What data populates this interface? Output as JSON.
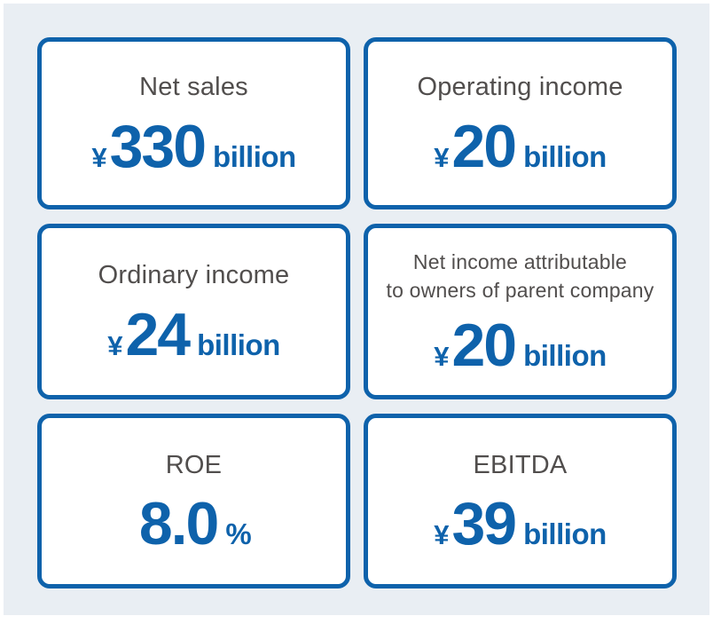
{
  "colors": {
    "panel_background": "#e9eef3",
    "card_background": "#ffffff",
    "card_border_blue": "#0e62ab",
    "value_blue": "#0e62ab",
    "label_gray": "#514e4d"
  },
  "cards": [
    {
      "id": "net-sales",
      "label": "Net sales",
      "currency": "¥",
      "value": "330",
      "suffix": "billion"
    },
    {
      "id": "operating-income",
      "label": "Operating income",
      "currency": "¥",
      "value": "20",
      "suffix": "billion"
    },
    {
      "id": "ordinary-income",
      "label": "Ordinary income",
      "currency": "¥",
      "value": "24",
      "suffix": "billion"
    },
    {
      "id": "net-income",
      "label": "Net income attributable\nto owners of parent company",
      "currency": "¥",
      "value": "20",
      "suffix": "billion"
    },
    {
      "id": "roe",
      "label": "ROE",
      "currency": "",
      "value": "8.0",
      "suffix": "%"
    },
    {
      "id": "ebitda",
      "label": "EBITDA",
      "currency": "¥",
      "value": "39",
      "suffix": "billion"
    }
  ],
  "chart_data": {
    "type": "table",
    "title": "",
    "metrics": [
      {
        "label": "Net sales",
        "value": 330,
        "unit": "¥ billion"
      },
      {
        "label": "Operating income",
        "value": 20,
        "unit": "¥ billion"
      },
      {
        "label": "Ordinary income",
        "value": 24,
        "unit": "¥ billion"
      },
      {
        "label": "Net income attributable to owners of parent company",
        "value": 20,
        "unit": "¥ billion"
      },
      {
        "label": "ROE",
        "value": 8.0,
        "unit": "%"
      },
      {
        "label": "EBITDA",
        "value": 39,
        "unit": "¥ billion"
      }
    ]
  }
}
